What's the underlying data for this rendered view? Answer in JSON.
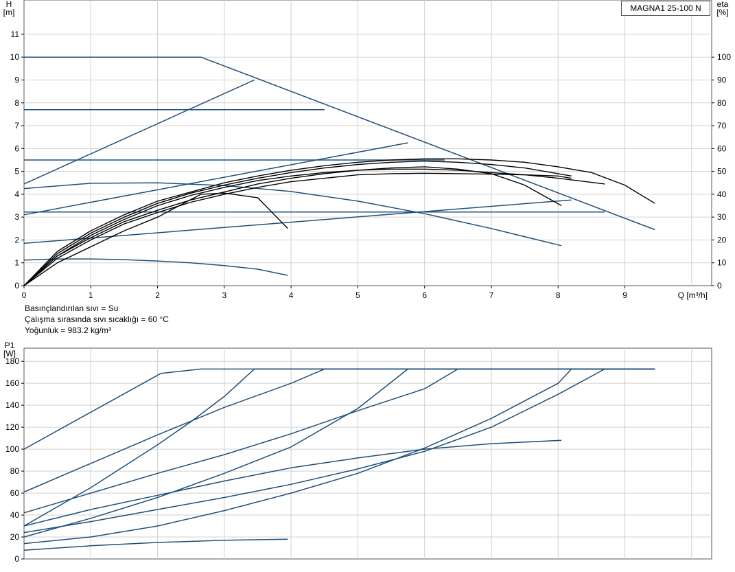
{
  "model_label": "MAGNA1 25-100 N",
  "conditions": [
    "Basınçlandırılan sıvı = Su",
    "Çalışma sırasında sıvı sıcaklığı = 60 °C",
    "Yoğunluk = 983.2 kg/m³"
  ],
  "colors": {
    "blue": "#1f4e79",
    "black": "#000000",
    "grid": "#d0d0d0"
  },
  "chart_data": [
    {
      "type": "line",
      "ylabel": "H\n[m]",
      "y2label": "eta\n[%]",
      "xlabel": "Q [m³/h]",
      "x_ticks": [
        "0",
        "1",
        "2",
        "3",
        "4",
        "5",
        "6",
        "7",
        "8",
        "9"
      ],
      "y_ticks": [
        "0",
        "1",
        "2",
        "3",
        "4",
        "5",
        "6",
        "7",
        "8",
        "9",
        "10",
        "11"
      ],
      "y2_ticks": [
        "0",
        "10",
        "20",
        "30",
        "40",
        "50",
        "60",
        "70",
        "80",
        "90",
        "100"
      ],
      "xlim": [
        0,
        10.3
      ],
      "ylim": [
        0,
        12.5
      ],
      "y2lim": [
        0,
        125
      ],
      "grid": true,
      "series": [
        {
          "color": "blue",
          "x": [
            0,
            2.65,
            9.45
          ],
          "y": [
            10,
            10,
            2.45
          ]
        },
        {
          "color": "blue",
          "x": [
            0,
            4.5
          ],
          "y": [
            7.7,
            7.7
          ]
        },
        {
          "color": "blue",
          "x": [
            0,
            6.3
          ],
          "y": [
            5.5,
            5.5
          ]
        },
        {
          "color": "blue",
          "x": [
            0,
            8.7
          ],
          "y": [
            3.22,
            3.22
          ]
        },
        {
          "color": "blue",
          "x": [
            0,
            3.45
          ],
          "y": [
            4.45,
            9.0
          ]
        },
        {
          "color": "blue",
          "x": [
            0,
            5.75
          ],
          "y": [
            3.1,
            6.25
          ]
        },
        {
          "color": "blue",
          "x": [
            0,
            8.2
          ],
          "y": [
            1.85,
            3.75
          ]
        },
        {
          "color": "blue",
          "x": [
            0,
            1,
            2,
            3,
            4,
            5,
            6,
            7,
            8.05
          ],
          "y": [
            4.25,
            4.48,
            4.5,
            4.38,
            4.12,
            3.7,
            3.15,
            2.5,
            1.75
          ]
        },
        {
          "color": "blue",
          "x": [
            0,
            0.5,
            1,
            1.5,
            2,
            2.5,
            3,
            3.5,
            3.95
          ],
          "y": [
            1.12,
            1.17,
            1.17,
            1.14,
            1.08,
            1.0,
            0.88,
            0.72,
            0.45
          ]
        },
        {
          "color": "black",
          "x": [
            0,
            0.5,
            1,
            1.5,
            2,
            2.5,
            3,
            3.5,
            4,
            4.5,
            5,
            5.5,
            6,
            6.5,
            7,
            7.5,
            8,
            8.5,
            9,
            9.45
          ],
          "y": [
            0,
            15,
            24,
            31,
            37,
            41,
            45,
            48,
            50.5,
            52.5,
            54,
            55,
            55.5,
            55.5,
            55,
            54,
            52,
            49.5,
            44,
            36
          ]
        },
        {
          "color": "black",
          "x": [
            0,
            0.5,
            1,
            1.5,
            2,
            2.5,
            3,
            3.5,
            4,
            4.5,
            5,
            5.5,
            6,
            6.5,
            7,
            7.5,
            8,
            8.2
          ],
          "y": [
            0,
            14,
            23,
            30,
            36,
            40.5,
            44,
            47,
            49.5,
            51.5,
            53,
            54,
            54.5,
            54,
            53,
            51.5,
            49,
            48
          ]
        },
        {
          "color": "black",
          "x": [
            0,
            0.5,
            1,
            1.5,
            2,
            2.5,
            3,
            3.5,
            4,
            4.5,
            5,
            5.5,
            6,
            6.5,
            7,
            7.5,
            8,
            8.7
          ],
          "y": [
            0,
            13,
            22,
            29,
            35,
            39.5,
            43,
            46,
            48,
            49.5,
            50.5,
            51,
            51,
            50.5,
            49.5,
            48.5,
            47,
            44.5
          ]
        },
        {
          "color": "black",
          "x": [
            0,
            0.5,
            1,
            1.5,
            2,
            2.5,
            3,
            3.5,
            4,
            4.5,
            5,
            5.5,
            6,
            6.5,
            7,
            7.5,
            8.05
          ],
          "y": [
            0,
            13,
            21,
            28,
            33,
            37.5,
            41,
            44.5,
            47,
            49,
            50.5,
            51.5,
            52,
            51,
            49,
            44,
            35
          ]
        },
        {
          "color": "black",
          "x": [
            0,
            0.5,
            1,
            1.5,
            2,
            2.5,
            3,
            3.5,
            4,
            4.5,
            5,
            5.5,
            6,
            6.5,
            7,
            7.5,
            8,
            8.2
          ],
          "y": [
            0,
            12,
            20,
            27,
            32,
            36.5,
            40,
            43,
            45.5,
            47,
            48.5,
            49,
            49.2,
            49,
            48.8,
            48.5,
            48,
            47
          ]
        },
        {
          "color": "black",
          "x": [
            0,
            0.5,
            1,
            1.5,
            2,
            2.65,
            3,
            3.5,
            3.95
          ],
          "y": [
            0,
            10,
            17,
            24,
            30,
            40,
            40.5,
            38.5,
            25
          ]
        }
      ]
    },
    {
      "type": "line",
      "ylabel": "P1\n[W]",
      "xlim": [
        0,
        10.3
      ],
      "ylim": [
        0,
        192
      ],
      "y_ticks": [
        "0",
        "20",
        "40",
        "60",
        "80",
        "100",
        "120",
        "140",
        "160",
        "180"
      ],
      "grid": true,
      "series": [
        {
          "color": "blue",
          "x": [
            0,
            2.05,
            2.65,
            9.45
          ],
          "y": [
            100,
            169,
            173,
            173
          ]
        },
        {
          "color": "blue",
          "x": [
            0,
            1,
            2,
            2.5,
            3,
            3.45,
            9.45
          ],
          "y": [
            30,
            65,
            104,
            125,
            148,
            173,
            173
          ]
        },
        {
          "color": "blue",
          "x": [
            0,
            1,
            2,
            3,
            4,
            4.5,
            9.45
          ],
          "y": [
            61,
            87,
            113,
            138,
            160,
            173,
            173
          ]
        },
        {
          "color": "blue",
          "x": [
            0,
            1,
            2,
            3,
            4,
            5,
            5.75,
            9.45
          ],
          "y": [
            20,
            37,
            56,
            78,
            102,
            137,
            173,
            173
          ]
        },
        {
          "color": "blue",
          "x": [
            0,
            1,
            2,
            3,
            4,
            5,
            6,
            6.5,
            9.45
          ],
          "y": [
            42,
            60,
            78,
            95,
            114,
            135,
            155,
            173,
            173
          ]
        },
        {
          "color": "blue",
          "x": [
            0,
            1,
            2,
            3,
            4,
            5,
            6,
            7,
            8,
            8.2,
            9.45
          ],
          "y": [
            14,
            20,
            30,
            44,
            60,
            78,
            101,
            128,
            160,
            173,
            173
          ]
        },
        {
          "color": "blue",
          "x": [
            0,
            1,
            2,
            3,
            4,
            5,
            6,
            7,
            8,
            8.7,
            9.45
          ],
          "y": [
            24,
            34,
            45,
            56,
            68,
            82,
            98,
            120,
            150,
            173,
            173
          ]
        },
        {
          "color": "blue",
          "x": [
            0,
            1,
            2,
            3,
            4,
            5,
            6,
            7,
            8.05
          ],
          "y": [
            30,
            45,
            58,
            71,
            83,
            92,
            100,
            105,
            108
          ]
        },
        {
          "color": "blue",
          "x": [
            0,
            1,
            2,
            3,
            3.95
          ],
          "y": [
            8,
            12,
            15,
            17,
            18
          ]
        }
      ]
    }
  ]
}
